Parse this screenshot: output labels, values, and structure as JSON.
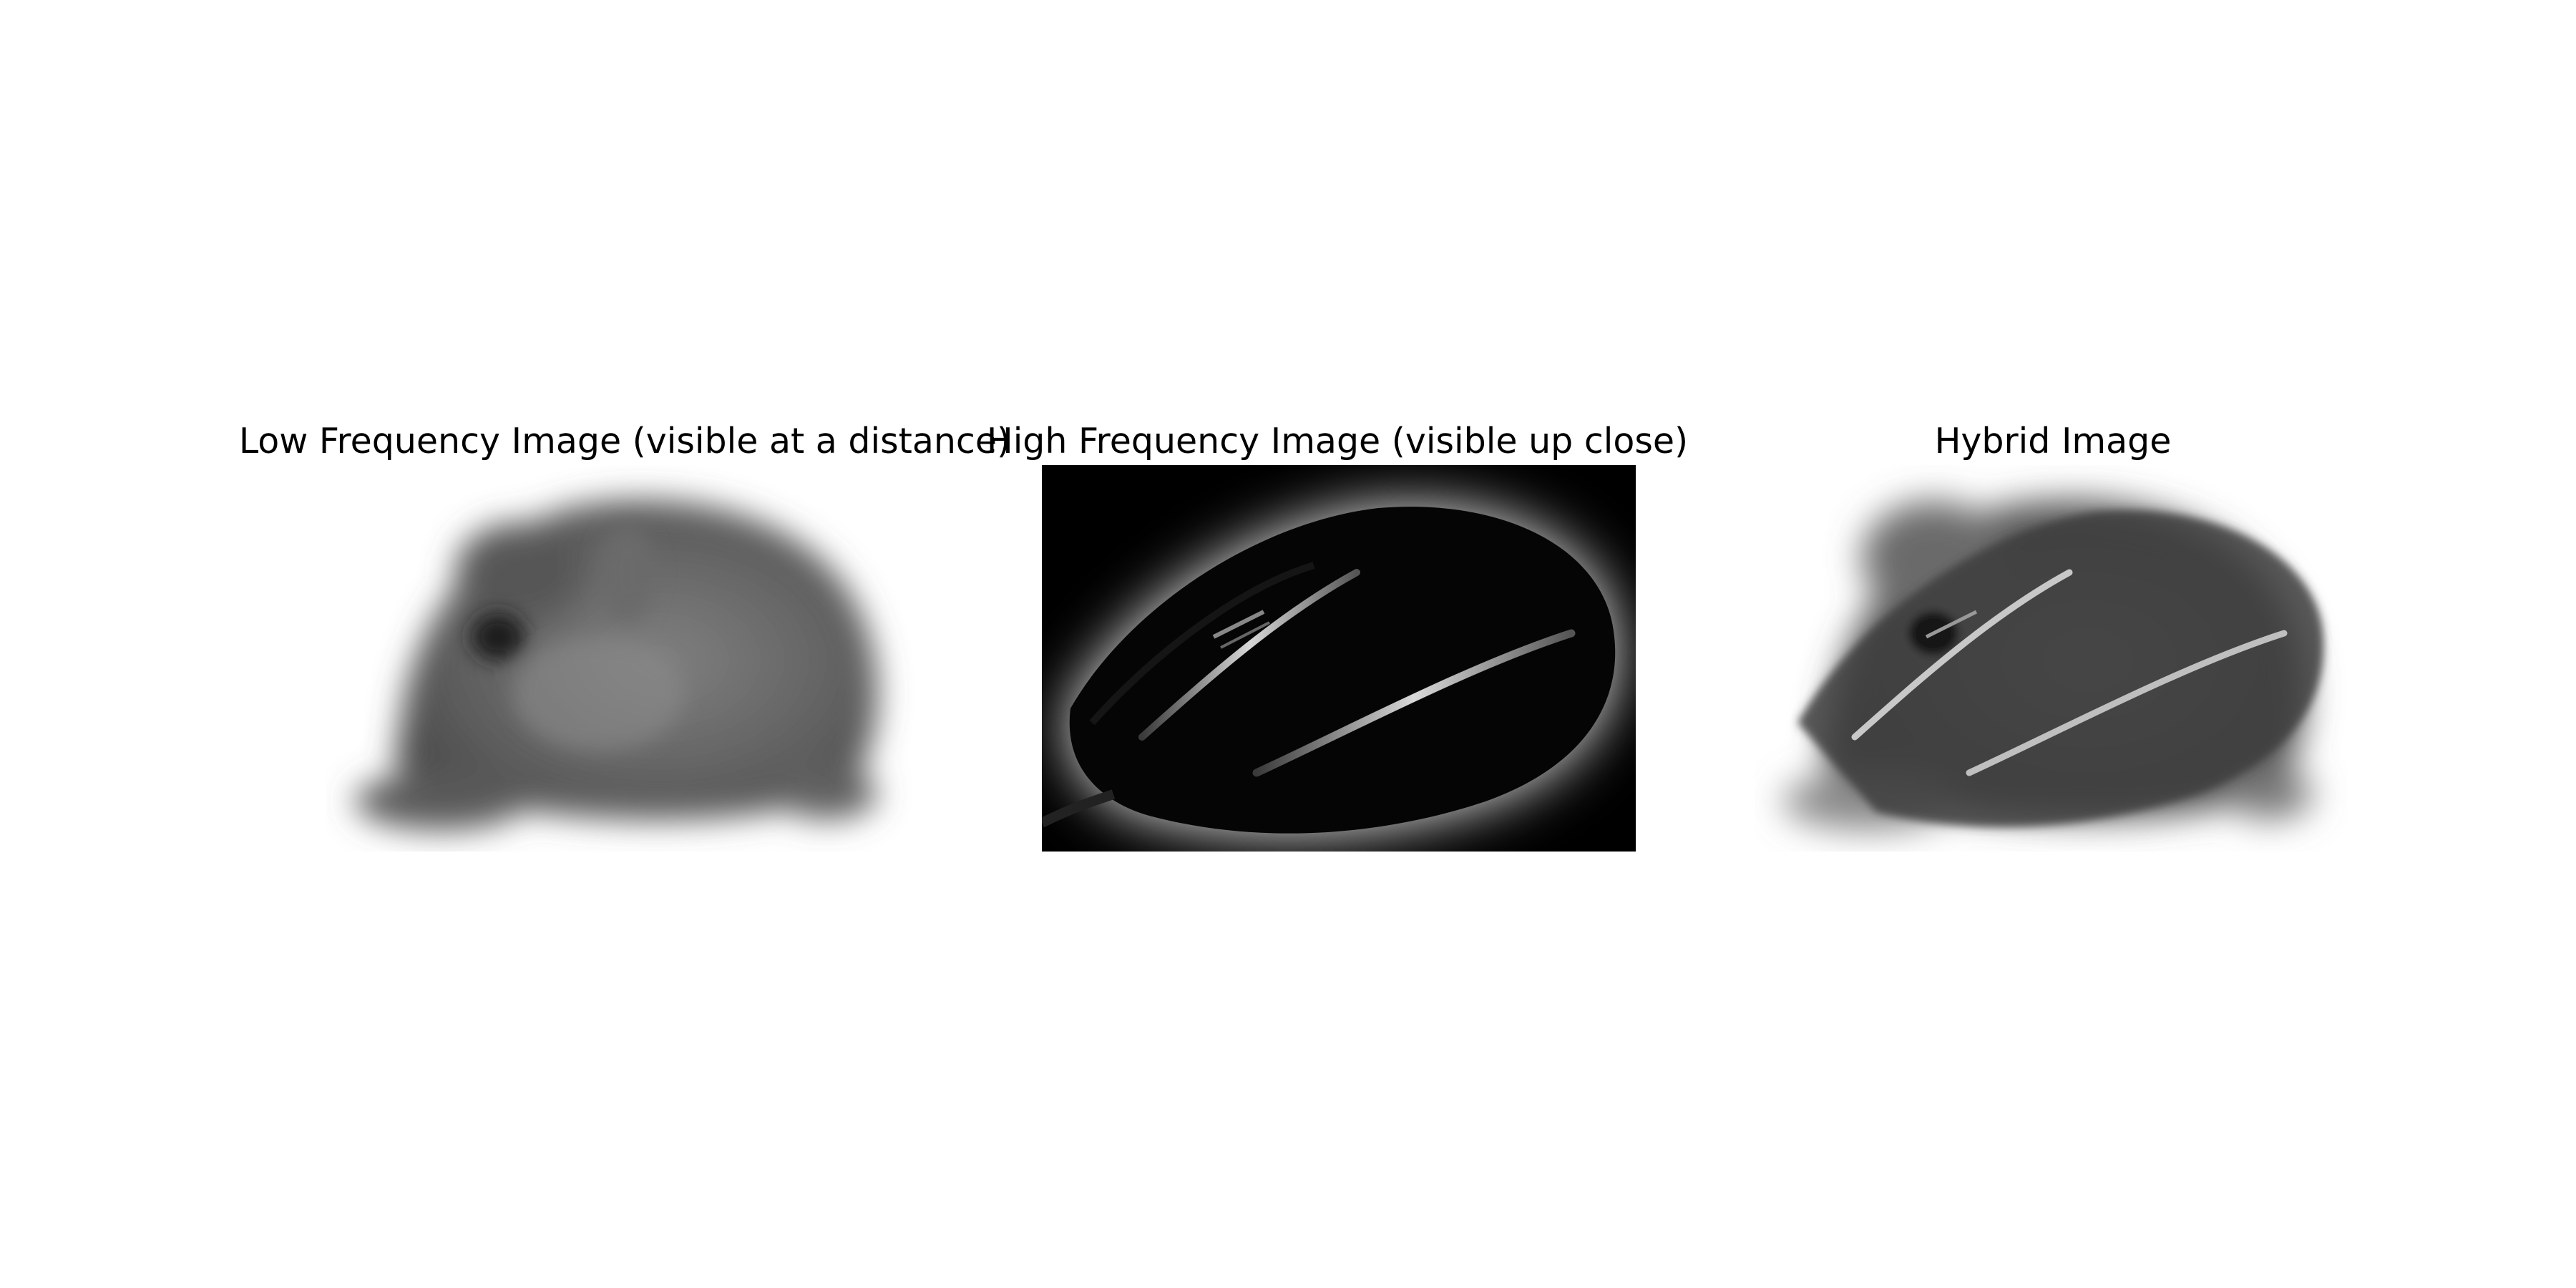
{
  "figure": {
    "panels": [
      {
        "title": "Low Frequency Image (visible at a distance)",
        "subject": "blurred mouse animal"
      },
      {
        "title": "High Frequency Image (visible up close)",
        "subject": "computer mouse edges"
      },
      {
        "title": "Hybrid Image",
        "subject": "hybrid of mouse animal and computer mouse"
      }
    ]
  }
}
